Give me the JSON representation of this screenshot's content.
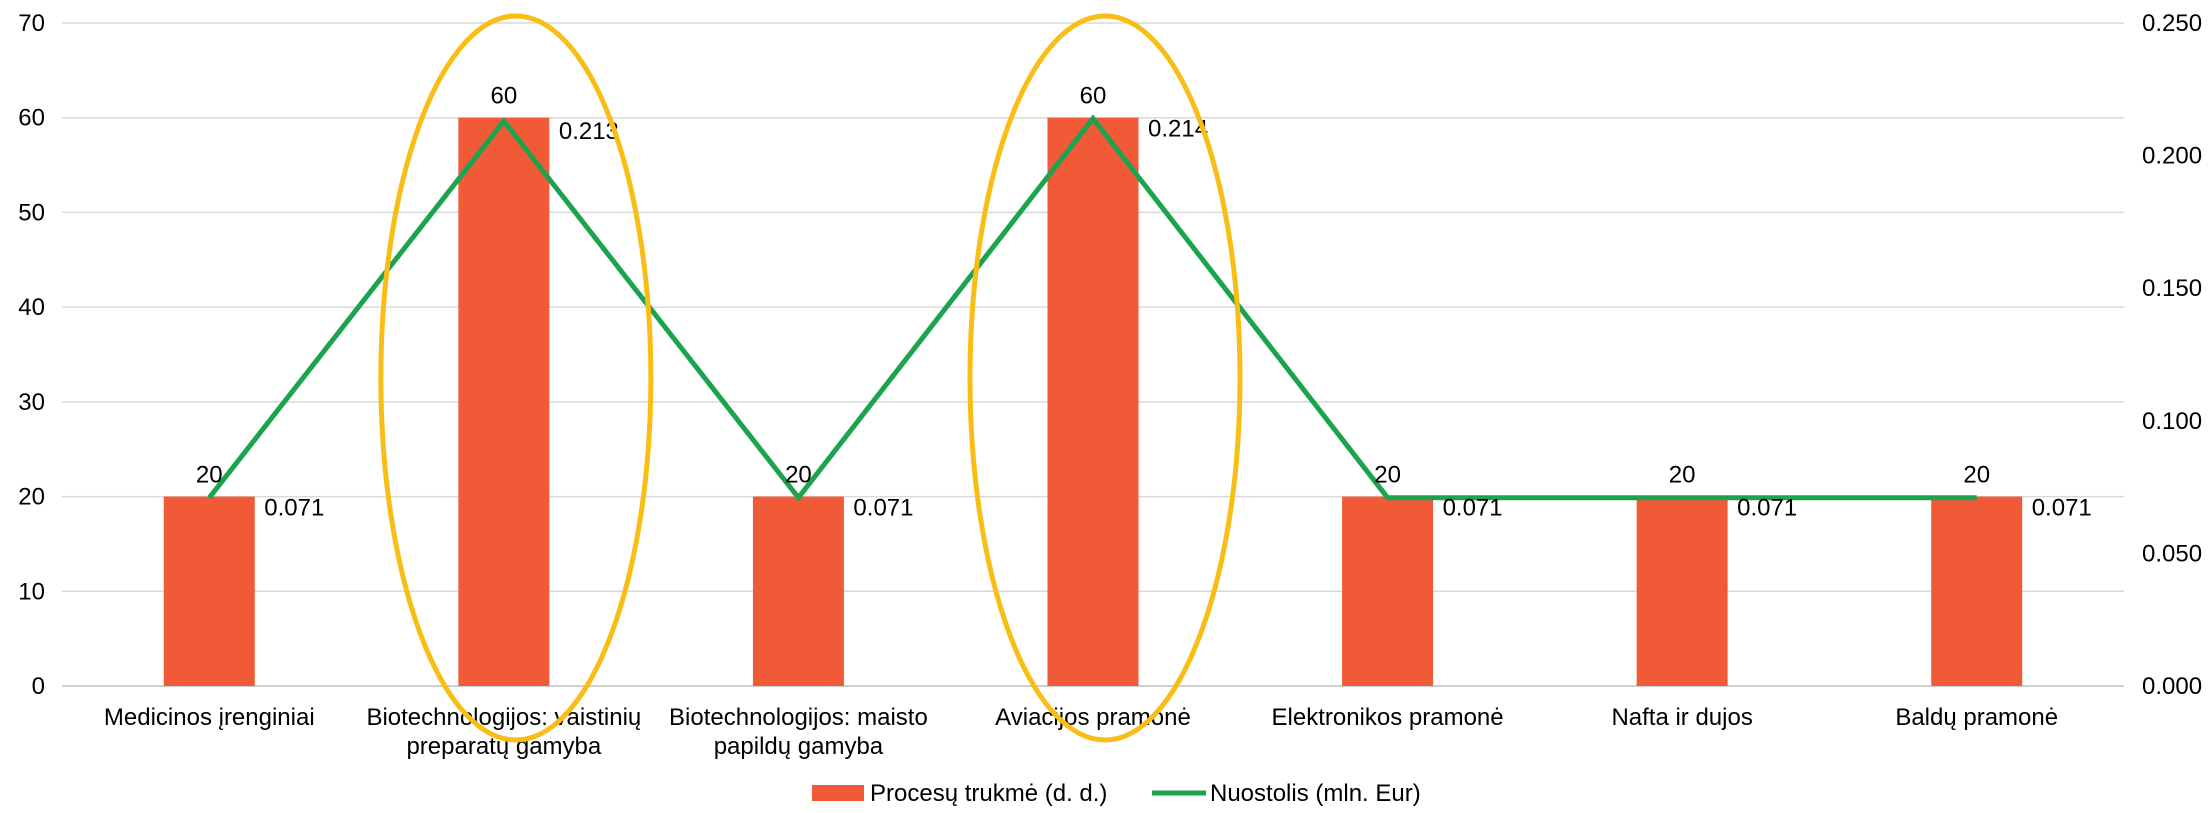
{
  "chart_data": {
    "type": "bar",
    "categories": [
      [
        "Medicinos įrenginiai"
      ],
      [
        "Biotechnologijos: vaistinių",
        "preparatų gamyba"
      ],
      [
        "Biotechnologijos: maisto",
        "papildų gamyba"
      ],
      [
        "Aviacijos pramonė"
      ],
      [
        "Elektronikos pramonė"
      ],
      [
        "Nafta ir dujos"
      ],
      [
        "Baldų pramonė"
      ]
    ],
    "series": [
      {
        "name": "Procesų trukmė (d. d.)",
        "type": "bar",
        "axis": "left",
        "color": "#F15A36",
        "values": [
          20,
          60,
          20,
          60,
          20,
          20,
          20
        ],
        "labels": [
          "20",
          "60",
          "20",
          "60",
          "20",
          "20",
          "20"
        ]
      },
      {
        "name": "Nuostolis (mln. Eur)",
        "type": "line",
        "axis": "right",
        "color": "#1BA34E",
        "values": [
          0.071,
          0.213,
          0.071,
          0.214,
          0.071,
          0.071,
          0.071
        ],
        "labels": [
          "0.071",
          "0.213",
          "0.071",
          "0.214",
          "0.071",
          "0.071",
          "0.071"
        ]
      }
    ],
    "y_left": {
      "min": 0,
      "max": 70,
      "ticks": [
        "0",
        "10",
        "20",
        "30",
        "40",
        "50",
        "60",
        "70"
      ]
    },
    "y_right": {
      "min": 0,
      "max": 0.25,
      "ticks": [
        "0.000",
        "0.050",
        "0.100",
        "0.150",
        "0.200",
        "0.250"
      ]
    },
    "grid": true,
    "legend_position": "bottom",
    "highlights": {
      "color": "#F9BE15",
      "category_indices": [
        1,
        3
      ]
    }
  }
}
